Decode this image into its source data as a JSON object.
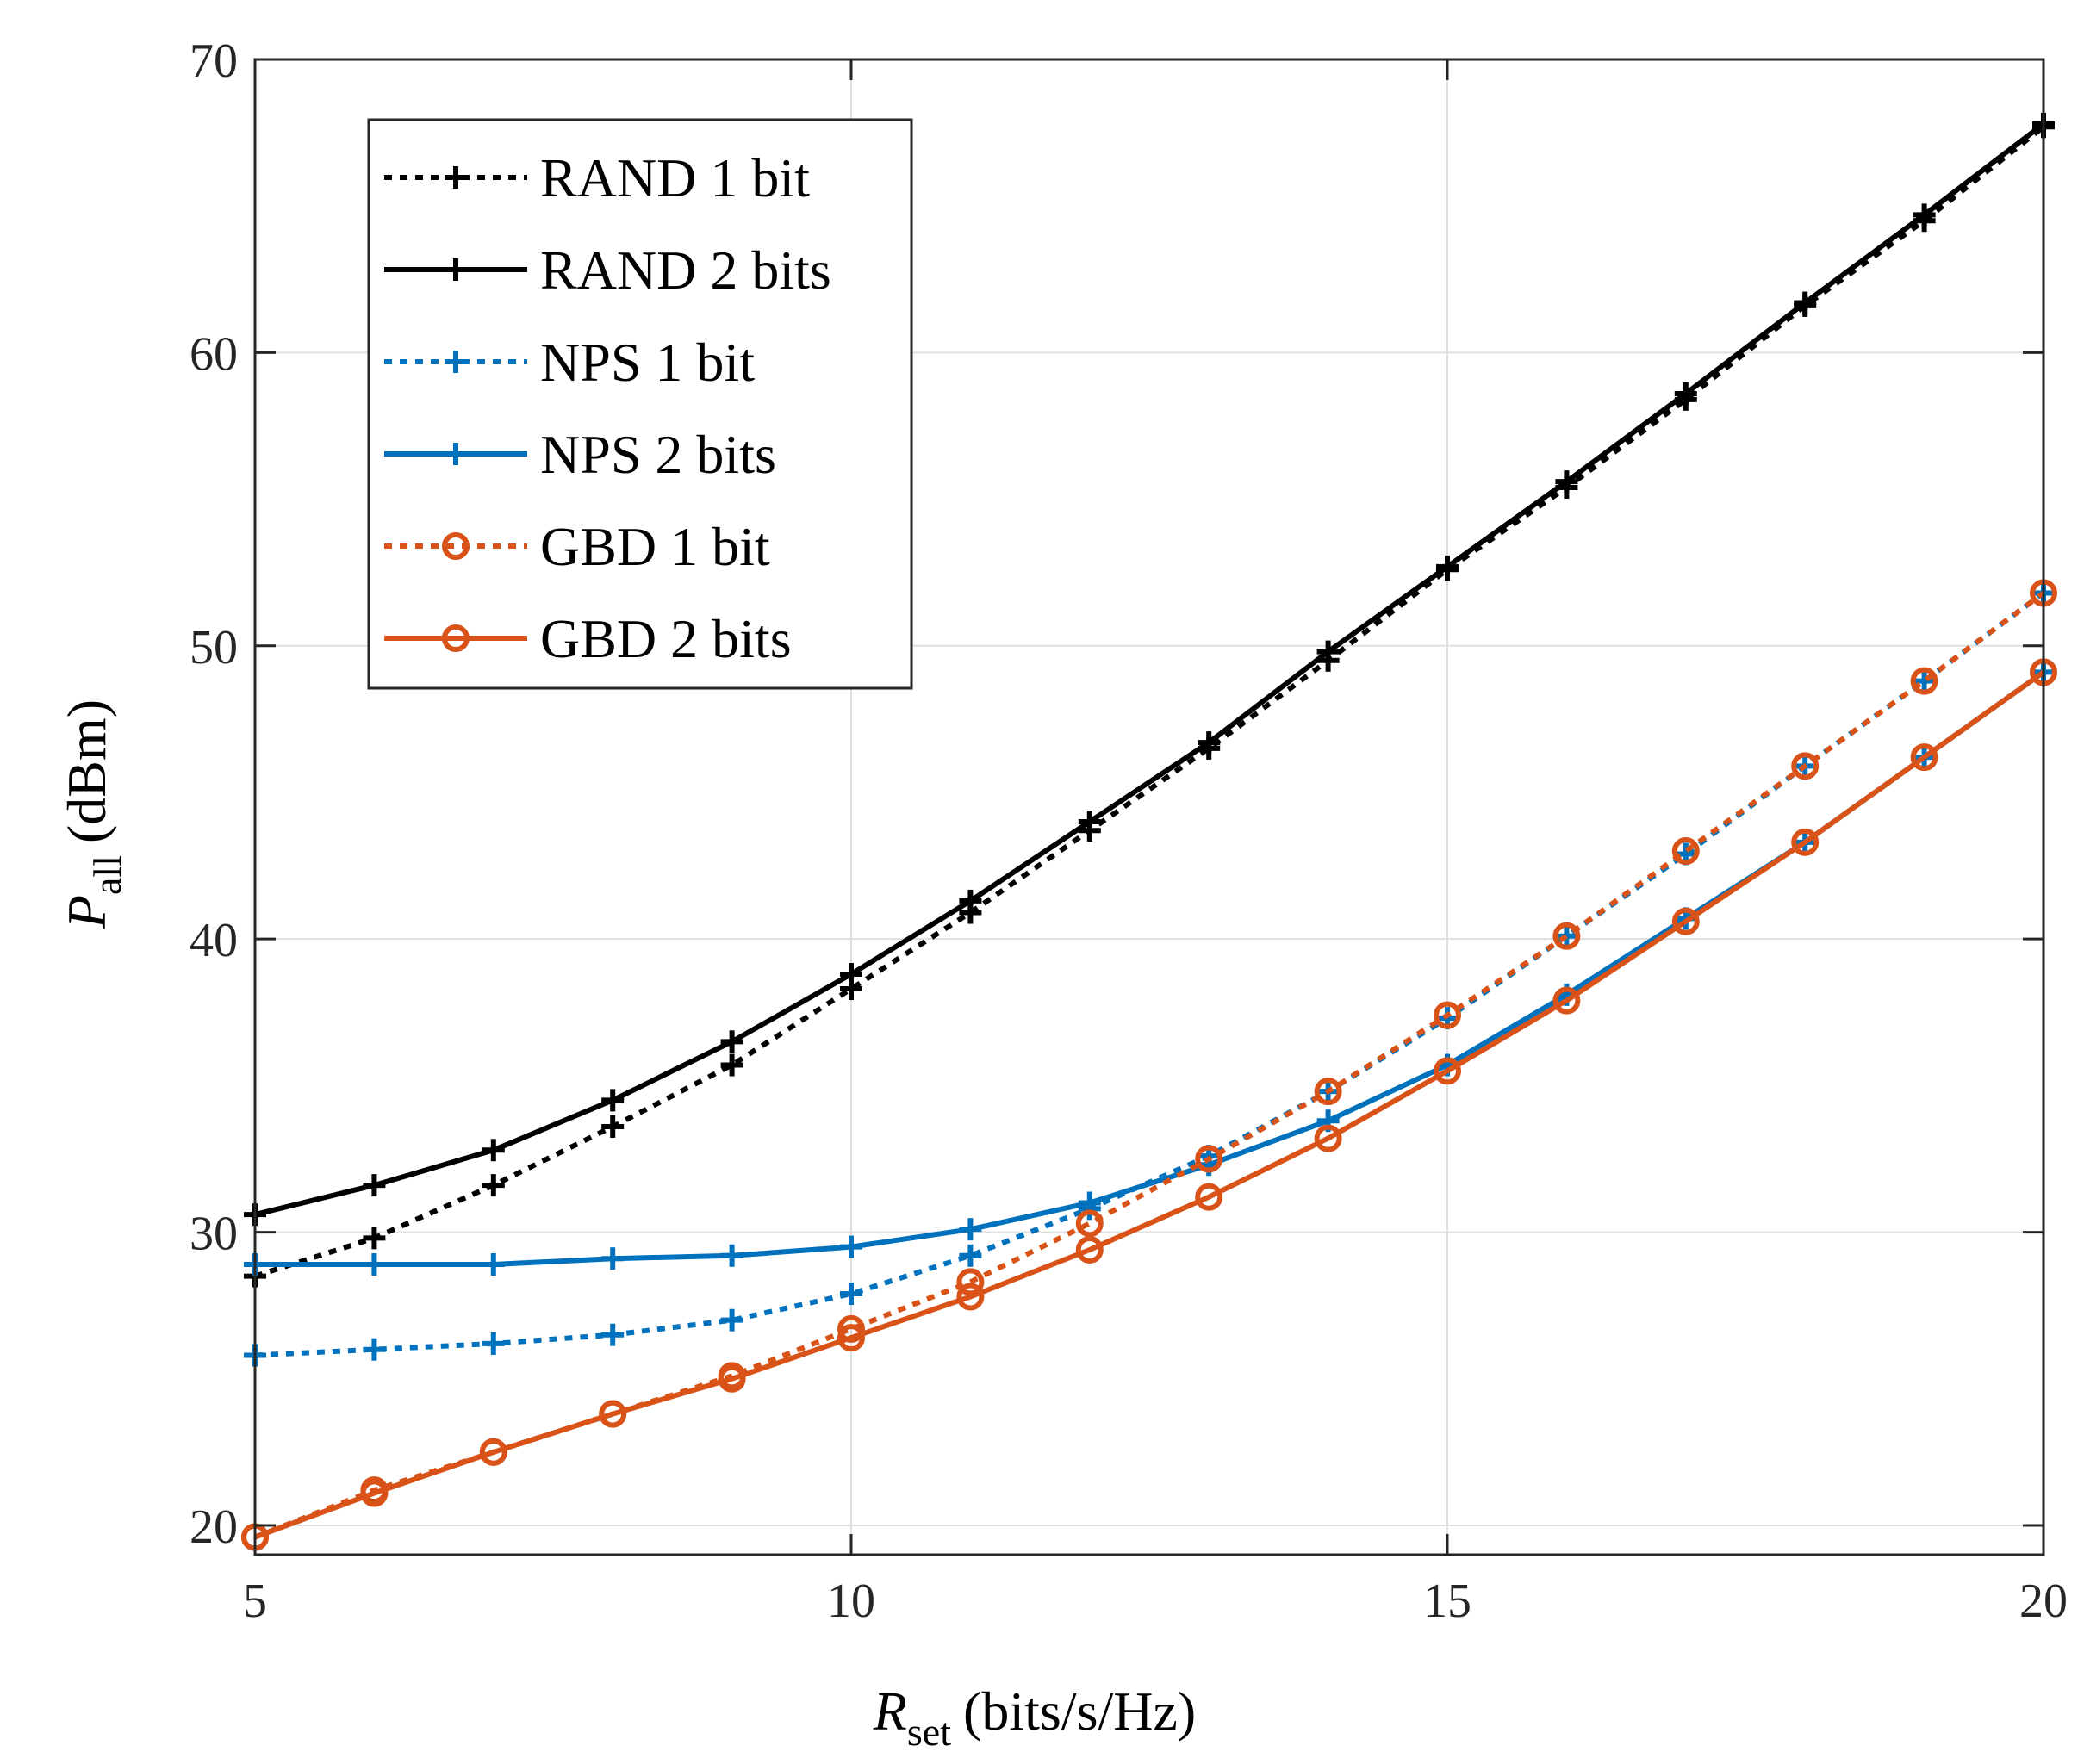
{
  "chart_data": {
    "type": "line",
    "x": [
      5,
      6,
      7,
      8,
      9,
      10,
      11,
      12,
      13,
      14,
      15,
      16,
      17,
      18,
      19,
      20
    ],
    "xlabel": {
      "main": "R",
      "sub": "set",
      "unit": "(bits/s/Hz)"
    },
    "ylabel": {
      "main": "P",
      "sub": "all",
      "unit": "(dBm)"
    },
    "xlim": [
      5,
      20
    ],
    "ylim": [
      19,
      70
    ],
    "xticks": [
      5,
      10,
      15,
      20
    ],
    "yticks": [
      20,
      30,
      40,
      50,
      60,
      70
    ],
    "grid": true,
    "legend_position": "top-left",
    "series": [
      {
        "name": "RAND 1 bit",
        "color": "#000000",
        "dash": "dotted",
        "marker": "plus",
        "values": [
          28.5,
          29.8,
          31.6,
          33.6,
          35.7,
          38.3,
          40.9,
          43.7,
          46.5,
          49.5,
          52.6,
          55.4,
          58.4,
          61.6,
          64.5,
          67.7
        ]
      },
      {
        "name": "RAND 2 bits",
        "color": "#000000",
        "dash": "solid",
        "marker": "plus",
        "values": [
          30.6,
          31.6,
          32.8,
          34.5,
          36.5,
          38.8,
          41.3,
          44.0,
          46.7,
          49.8,
          52.7,
          55.6,
          58.6,
          61.7,
          64.7,
          67.8
        ]
      },
      {
        "name": "NPS 1 bit",
        "color": "#0072BD",
        "dash": "dotted",
        "marker": "plus",
        "values": [
          25.8,
          26.0,
          26.2,
          26.5,
          27.0,
          27.9,
          29.2,
          30.8,
          32.6,
          34.8,
          37.3,
          40.1,
          42.9,
          45.9,
          48.8,
          51.8
        ]
      },
      {
        "name": "NPS 2 bits",
        "color": "#0072BD",
        "dash": "solid",
        "marker": "plus",
        "values": [
          28.9,
          28.9,
          28.9,
          29.1,
          29.2,
          29.5,
          30.1,
          31.0,
          32.3,
          33.8,
          35.7,
          38.1,
          40.7,
          43.3,
          46.2,
          49.1
        ]
      },
      {
        "name": "GBD 1 bit",
        "color": "#D95319",
        "dash": "dotted",
        "marker": "circle",
        "values": [
          19.6,
          21.2,
          22.5,
          23.8,
          25.1,
          26.7,
          28.3,
          30.3,
          32.5,
          34.8,
          37.4,
          40.1,
          43.0,
          45.9,
          48.8,
          51.8
        ]
      },
      {
        "name": "GBD 2 bits",
        "color": "#D95319",
        "dash": "solid",
        "marker": "circle",
        "values": [
          19.6,
          21.1,
          22.5,
          23.8,
          25.0,
          26.4,
          27.8,
          29.4,
          31.2,
          33.2,
          35.5,
          37.9,
          40.6,
          43.3,
          46.2,
          49.1
        ]
      }
    ]
  }
}
